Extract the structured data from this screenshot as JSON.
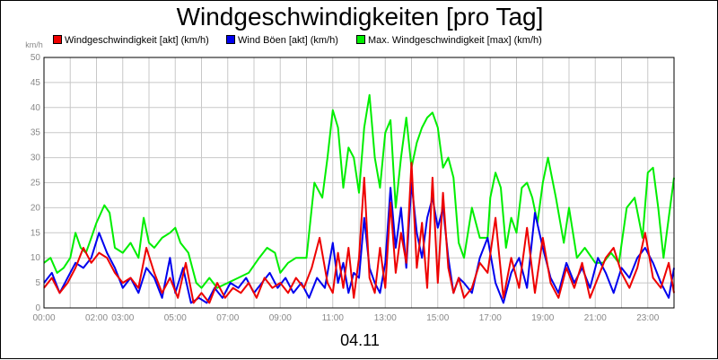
{
  "chart_data": {
    "type": "line",
    "title": "Windgeschwindigkeiten [pro Tag]",
    "ylabel": "km/h",
    "date_label": "04.11",
    "ylim": [
      0,
      50
    ],
    "yticks": [
      "0",
      "5",
      "10",
      "15",
      "20",
      "25",
      "30",
      "35",
      "40",
      "45",
      "50"
    ],
    "xlim": [
      0,
      24
    ],
    "xticks": [
      {
        "x": 0,
        "label": "00:00"
      },
      {
        "x": 2,
        "label": "02:00"
      },
      {
        "x": 3,
        "label": "03:00"
      },
      {
        "x": 5,
        "label": "05:00"
      },
      {
        "x": 7,
        "label": "07:00"
      },
      {
        "x": 9,
        "label": "09:00"
      },
      {
        "x": 11,
        "label": "11:00"
      },
      {
        "x": 13,
        "label": "13:00"
      },
      {
        "x": 15,
        "label": "15:00"
      },
      {
        "x": 17,
        "label": "17:00"
      },
      {
        "x": 19,
        "label": "19:00"
      },
      {
        "x": 21,
        "label": "21:00"
      },
      {
        "x": 23,
        "label": "23:00"
      }
    ],
    "grid": true,
    "legend_position": "top",
    "series": [
      {
        "name": "Max. Windgeschwindigkeit [max] (km/h)",
        "color": "#00ee00",
        "x": [
          0,
          0.25,
          0.5,
          0.75,
          1.0,
          1.2,
          1.4,
          1.6,
          1.8,
          2.0,
          2.3,
          2.5,
          2.7,
          3.0,
          3.3,
          3.6,
          3.8,
          4.0,
          4.2,
          4.5,
          4.8,
          5.0,
          5.2,
          5.5,
          5.8,
          6.0,
          6.3,
          6.6,
          7.0,
          7.4,
          7.8,
          8.2,
          8.5,
          8.8,
          9.0,
          9.3,
          9.6,
          10.0,
          10.3,
          10.6,
          10.8,
          11.0,
          11.2,
          11.4,
          11.6,
          11.8,
          12.0,
          12.2,
          12.4,
          12.6,
          12.8,
          13.0,
          13.2,
          13.4,
          13.6,
          13.8,
          14.0,
          14.2,
          14.4,
          14.6,
          14.8,
          15.0,
          15.2,
          15.4,
          15.6,
          15.8,
          16.0,
          16.3,
          16.6,
          16.9,
          17.0,
          17.2,
          17.4,
          17.6,
          17.8,
          18.0,
          18.2,
          18.4,
          18.6,
          18.8,
          19.0,
          19.2,
          19.5,
          19.8,
          20.0,
          20.3,
          20.6,
          21.0,
          21.3,
          21.6,
          21.9,
          22.2,
          22.5,
          22.8,
          23.0,
          23.2,
          23.4,
          23.6,
          23.8,
          24.0
        ],
        "values": [
          9,
          10,
          7,
          8,
          10,
          15,
          12,
          11,
          14,
          17,
          20.5,
          19,
          12,
          11,
          13,
          10,
          18,
          13,
          12,
          14,
          15,
          16,
          13,
          11,
          5,
          4,
          6,
          4,
          5,
          6,
          7,
          10,
          12,
          11,
          7,
          9,
          10,
          10,
          25,
          22,
          30,
          39.5,
          36,
          24,
          32,
          30,
          23,
          36,
          42.5,
          30,
          24,
          35,
          37.5,
          20,
          30,
          38,
          28,
          33,
          36,
          38,
          39,
          36,
          28,
          30,
          26,
          13,
          10,
          20,
          14,
          14,
          22,
          27,
          24,
          12,
          18,
          15,
          24,
          25,
          22,
          17,
          25,
          30,
          22,
          13,
          20,
          10,
          12,
          9,
          9,
          11,
          9,
          20,
          22,
          14,
          27,
          28,
          20,
          10,
          18,
          26
        ]
      },
      {
        "name": "Wind Böen [akt] (km/h)",
        "color": "#0000ee",
        "x": [
          0,
          0.3,
          0.6,
          0.9,
          1.2,
          1.5,
          1.8,
          2.1,
          2.4,
          2.7,
          3.0,
          3.3,
          3.6,
          3.9,
          4.2,
          4.5,
          4.8,
          5.0,
          5.3,
          5.6,
          5.9,
          6.2,
          6.5,
          6.8,
          7.1,
          7.4,
          7.7,
          8.0,
          8.3,
          8.6,
          8.9,
          9.2,
          9.5,
          9.8,
          10.1,
          10.4,
          10.7,
          11.0,
          11.2,
          11.4,
          11.6,
          11.8,
          12.0,
          12.2,
          12.4,
          12.6,
          12.8,
          13.0,
          13.2,
          13.4,
          13.6,
          13.8,
          14.0,
          14.2,
          14.4,
          14.6,
          14.8,
          15.0,
          15.2,
          15.4,
          15.6,
          15.8,
          16.0,
          16.3,
          16.6,
          16.9,
          17.2,
          17.5,
          17.8,
          18.1,
          18.4,
          18.7,
          19.0,
          19.3,
          19.6,
          19.9,
          20.2,
          20.5,
          20.8,
          21.1,
          21.4,
          21.7,
          22.0,
          22.3,
          22.6,
          22.9,
          23.2,
          23.5,
          23.8,
          24.0
        ],
        "values": [
          5,
          7,
          3,
          6,
          9,
          8,
          10,
          15,
          11,
          8,
          4,
          6,
          3,
          8,
          6,
          2,
          10,
          3,
          8,
          1,
          2,
          1,
          4,
          2,
          5,
          4,
          6,
          3,
          5,
          7,
          4,
          6,
          3,
          5,
          2,
          6,
          4,
          13,
          5,
          9,
          3,
          7,
          6,
          18,
          8,
          5,
          3,
          9,
          24,
          12,
          20,
          8,
          25,
          15,
          10,
          18,
          22,
          16,
          20,
          10,
          3,
          6,
          5,
          3,
          10,
          14,
          5,
          1,
          7,
          10,
          4,
          19,
          12,
          6,
          3,
          9,
          5,
          8,
          4,
          10,
          7,
          3,
          8,
          6,
          10,
          12,
          9,
          5,
          2,
          8
        ]
      },
      {
        "name": "Windgeschwindigkeit [akt] (km/h)",
        "color": "#ee0000",
        "x": [
          0,
          0.3,
          0.6,
          0.9,
          1.2,
          1.5,
          1.8,
          2.1,
          2.4,
          2.7,
          3.0,
          3.3,
          3.6,
          3.9,
          4.2,
          4.5,
          4.8,
          5.1,
          5.4,
          5.7,
          6.0,
          6.3,
          6.6,
          6.9,
          7.2,
          7.5,
          7.8,
          8.1,
          8.4,
          8.7,
          9.0,
          9.3,
          9.6,
          9.9,
          10.2,
          10.5,
          10.8,
          11.0,
          11.2,
          11.4,
          11.6,
          11.8,
          12.0,
          12.2,
          12.4,
          12.6,
          12.8,
          13.0,
          13.2,
          13.4,
          13.6,
          13.8,
          14.0,
          14.2,
          14.4,
          14.6,
          14.8,
          15.0,
          15.2,
          15.4,
          15.6,
          15.8,
          16.0,
          16.3,
          16.6,
          16.9,
          17.2,
          17.5,
          17.8,
          18.1,
          18.4,
          18.7,
          19.0,
          19.3,
          19.6,
          19.9,
          20.2,
          20.5,
          20.8,
          21.1,
          21.4,
          21.7,
          22.0,
          22.3,
          22.6,
          22.9,
          23.2,
          23.5,
          23.8,
          24.0
        ],
        "values": [
          4,
          6,
          3,
          5,
          8,
          12,
          9,
          11,
          10,
          7,
          5,
          6,
          4,
          12,
          7,
          3,
          6,
          2,
          9,
          1,
          3,
          1,
          5,
          2,
          4,
          3,
          5,
          2,
          6,
          4,
          5,
          3,
          6,
          4,
          8,
          14,
          5,
          3,
          11,
          4,
          12,
          2,
          10,
          26,
          6,
          3,
          12,
          4,
          21,
          7,
          15,
          9,
          29,
          8,
          17,
          4,
          26,
          5,
          23,
          8,
          3,
          6,
          2,
          4,
          9,
          7,
          18,
          2,
          10,
          4,
          16,
          3,
          14,
          5,
          2,
          8,
          4,
          9,
          2,
          6,
          10,
          12,
          7,
          4,
          8,
          15,
          6,
          4,
          9,
          3
        ]
      }
    ]
  }
}
